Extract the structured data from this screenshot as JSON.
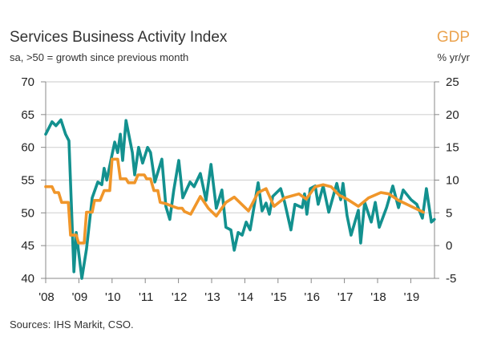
{
  "chart_data": {
    "type": "line",
    "title": "Services Business Activity Index",
    "subtitle": "sa, >50 = growth since previous month",
    "right_axis_title": "GDP",
    "right_axis_subtitle": "% yr/yr",
    "source": "Sources: IHS Markit, CSO.",
    "x_tick_labels": [
      "'08",
      "'09",
      "'10",
      "'11",
      "'12",
      "'13",
      "'14",
      "'15",
      "'16",
      "'17",
      "'18",
      "'19"
    ],
    "x_ticks": [
      2008,
      2009,
      2010,
      2011,
      2012,
      2013,
      2014,
      2015,
      2016,
      2017,
      2018,
      2019
    ],
    "xlim": [
      2008,
      2019.72
    ],
    "left_ylim": [
      40,
      70
    ],
    "left_yticks": [
      40,
      45,
      50,
      55,
      60,
      65,
      70
    ],
    "right_ylim": [
      -5,
      25
    ],
    "right_yticks": [
      -5,
      0,
      5,
      10,
      15,
      20,
      25
    ],
    "grid": true,
    "colors": {
      "services": "#13918f",
      "gdp": "#f0962a",
      "gdp_label": "#eba34e"
    },
    "series": [
      {
        "axis": "left",
        "x": [
          2008.0,
          2008.19,
          2008.31,
          2008.46,
          2008.6,
          2008.7,
          2008.85,
          2008.92,
          2009.09,
          2009.23,
          2009.4,
          2009.57,
          2009.69,
          2009.76,
          2009.84,
          2010.0,
          2010.08,
          2010.17,
          2010.25,
          2010.32,
          2010.42,
          2010.61,
          2010.68,
          2010.8,
          2010.92,
          2011.07,
          2011.16,
          2011.29,
          2011.5,
          2011.62,
          2011.74,
          2011.86,
          2012.01,
          2012.13,
          2012.35,
          2012.47,
          2012.66,
          2012.83,
          2012.98,
          2013.14,
          2013.31,
          2013.43,
          2013.58,
          2013.68,
          2013.8,
          2013.92,
          2014.04,
          2014.16,
          2014.4,
          2014.52,
          2014.64,
          2014.74,
          2014.84,
          2015.08,
          2015.2,
          2015.39,
          2015.51,
          2015.73,
          2015.8,
          2015.87,
          2015.97,
          2016.12,
          2016.21,
          2016.36,
          2016.53,
          2016.77,
          2016.89,
          2016.96,
          2017.08,
          2017.2,
          2017.42,
          2017.49,
          2017.61,
          2017.81,
          2017.93,
          2018.05,
          2018.27,
          2018.46,
          2018.63,
          2018.77,
          2019.01,
          2019.18,
          2019.35,
          2019.47,
          2019.62,
          2019.71
        ],
        "values": [
          62,
          63.9,
          63.3,
          64.2,
          62,
          61,
          41,
          47,
          40,
          44.5,
          52.3,
          54.7,
          54.3,
          56.8,
          55,
          58.9,
          60.8,
          59.2,
          62,
          58,
          64.1,
          59.2,
          55.8,
          60,
          57.6,
          60,
          59.2,
          54.7,
          58.2,
          51,
          49,
          53.5,
          58,
          52.3,
          54.7,
          54,
          56,
          51.9,
          57.4,
          50.7,
          53.5,
          47.8,
          47.4,
          44.3,
          47,
          46.6,
          48.6,
          47.4,
          54.6,
          50.3,
          51.5,
          49.8,
          52.5,
          53.7,
          51.6,
          47.4,
          51.3,
          50.8,
          52.9,
          49.8,
          53.7,
          54.1,
          51.3,
          54.1,
          50.1,
          54.5,
          52,
          54.5,
          49.6,
          46.6,
          50.4,
          45.4,
          51.6,
          48.6,
          51.6,
          47.8,
          50.8,
          54.1,
          50.8,
          53.5,
          52,
          51.3,
          49.2,
          53.7,
          48.6,
          49
        ]
      },
      {
        "axis": "right",
        "x": [
          2008.0,
          2008.19,
          2008.27,
          2008.39,
          2008.48,
          2008.68,
          2008.75,
          2008.92,
          2008.99,
          2009.16,
          2009.23,
          2009.4,
          2009.47,
          2009.64,
          2009.76,
          2009.93,
          2010.0,
          2010.17,
          2010.25,
          2010.42,
          2010.49,
          2010.68,
          2010.78,
          2010.97,
          2011.04,
          2011.16,
          2011.26,
          2011.38,
          2011.45,
          2011.62,
          2011.82,
          2011.99,
          2012.11,
          2012.18,
          2012.37,
          2012.66,
          2012.9,
          2013.14,
          2013.43,
          2013.68,
          2014.11,
          2014.4,
          2014.64,
          2014.88,
          2015.2,
          2015.63,
          2015.85,
          2016.12,
          2016.36,
          2016.6,
          2016.84,
          2017.08,
          2017.42,
          2017.73,
          2018.1,
          2018.34,
          2018.63,
          2019.01,
          2019.38
        ],
        "values": [
          9,
          9,
          8.1,
          8.1,
          6.6,
          6.6,
          1.6,
          1.6,
          0.4,
          0.4,
          5.1,
          5.1,
          6.9,
          6.9,
          8.4,
          8.4,
          13.2,
          13.2,
          10.2,
          10.2,
          9.6,
          9.6,
          10.8,
          10.8,
          10.2,
          10.2,
          8.4,
          8.4,
          6.6,
          6.4,
          6,
          5.7,
          5.7,
          5.2,
          4.8,
          7.5,
          5.7,
          4.5,
          6.6,
          7.4,
          5.3,
          8.1,
          8.7,
          6,
          7.3,
          7.9,
          7.1,
          9,
          9.3,
          9,
          7.7,
          7.1,
          6,
          7.3,
          8.1,
          7.9,
          6.9,
          6,
          5.1
        ]
      }
    ]
  }
}
